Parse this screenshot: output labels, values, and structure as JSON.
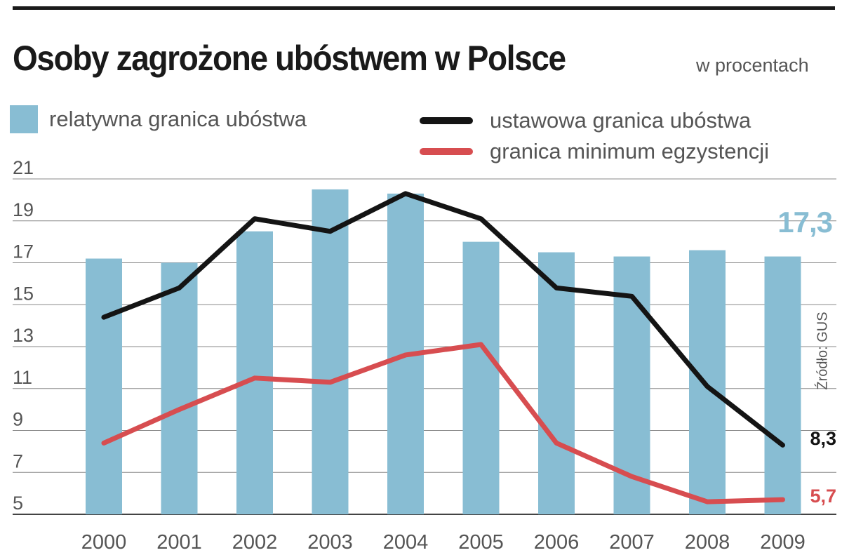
{
  "header": {
    "title": "Osoby zagrożone ubóstwem w Polsce",
    "subtitle": "w procentach"
  },
  "legend": {
    "bar": "relatywna granica ubóstwa",
    "line_black": "ustawowa granica ubóstwa",
    "line_red": "granica minimum egzystencji"
  },
  "source": "Źródło: GUS",
  "colors": {
    "bar": "#88bdd3",
    "line_black": "#141414",
    "line_red": "#d74d50",
    "grid": "#888888",
    "text": "#555555"
  },
  "chart_data": {
    "type": "bar",
    "categories": [
      "2000",
      "2001",
      "2002",
      "2003",
      "2004",
      "2005",
      "2006",
      "2007",
      "2008",
      "2009"
    ],
    "series": [
      {
        "name": "relatywna granica ubóstwa",
        "type": "bar",
        "values": [
          17.2,
          17.0,
          18.5,
          20.5,
          20.3,
          18.0,
          17.5,
          17.3,
          17.6,
          17.3
        ]
      },
      {
        "name": "ustawowa granica ubóstwa",
        "type": "line",
        "values": [
          14.4,
          15.8,
          19.1,
          18.5,
          20.3,
          19.1,
          15.8,
          15.4,
          11.1,
          8.3
        ]
      },
      {
        "name": "granica minimum egzystencji",
        "type": "line",
        "values": [
          8.4,
          10.0,
          11.5,
          11.3,
          12.6,
          13.1,
          8.4,
          6.8,
          5.6,
          5.7
        ]
      }
    ],
    "y_ticks": [
      "5",
      "7",
      "9",
      "11",
      "13",
      "15",
      "17",
      "19",
      "21"
    ],
    "ylim": [
      5,
      21
    ],
    "grid": true,
    "annotations": {
      "bar_last": "17,3",
      "black_last": "8,3",
      "red_last": "5,7"
    }
  }
}
